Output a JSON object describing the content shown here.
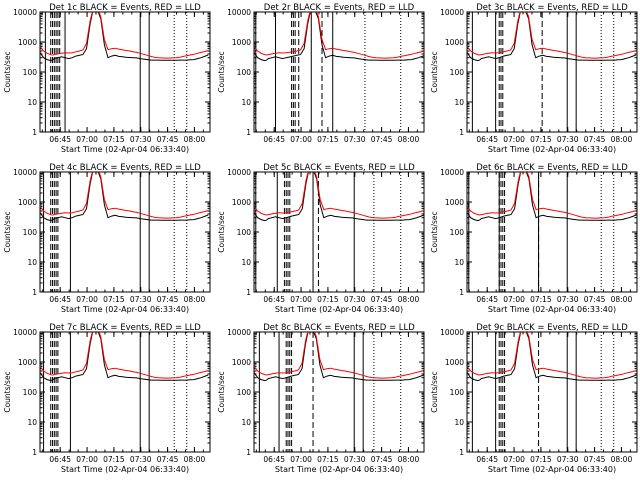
{
  "panels": [
    {
      "title": "Det 1c BLACK = Events, RED = LLD",
      "ylabel": "Counts/sec",
      "xlabel": "Start Time (02-Apr-04 06:33:40)"
    },
    {
      "title": "Det 2r BLACK = Events, RED = LLD",
      "ylabel": "Counts/sec",
      "xlabel": ""
    },
    {
      "title": "Det 3c BLACK = Events, RED = LLD",
      "ylabel": "Counts/sec",
      "xlabel": "Start Time (02-Apr-04 06:33:40)"
    },
    {
      "title": "Det 4c BLACK = Events, RED = LLD",
      "ylabel": "Counts/sec",
      "xlabel": "Start Time (02-Apr-04 06:33:40)"
    },
    {
      "title": "Det 5c BLACK = Events, RED = LLD",
      "ylabel": "Counts/sec",
      "xlabel": "Start Time (02-Apr-04 06:33:40)"
    },
    {
      "title": "Det 6c BLACK = Events, RED = LLD",
      "ylabel": "Counts/sec",
      "xlabel": "Start Time (02-Apr-04 06:33:40)"
    },
    {
      "title": "Det 7c BLACK = Events, RED = LLD",
      "ylabel": "Counts/sec",
      "xlabel": "Start Time (02-Apr-04 06:33:40)"
    },
    {
      "title": "Det 8c BLACK = Events, RED = LLD",
      "ylabel": "Counts/sec",
      "xlabel": "Start Time (02-Apr-04 06:33:40)"
    },
    {
      "title": "Det 9c BLACK = Events, RED = LLD",
      "ylabel": "Counts/sec",
      "xlabel": "Start Time (02-Apr-04 06:33:40)"
    }
  ],
  "chart_data": {
    "type": "line",
    "xticks": [
      "06:45",
      "07:00",
      "07:15",
      "07:30",
      "07:45",
      "08:00"
    ],
    "yticks": [
      "1",
      "10",
      "100",
      "1000",
      "10000"
    ],
    "ylim": [
      1,
      10000
    ],
    "yscale": "log",
    "xlim_minutes": [
      0,
      95
    ],
    "series": [
      {
        "name": "Events",
        "color": "#000000",
        "x": [
          0,
          2,
          4,
          6,
          7,
          8,
          10,
          12,
          14,
          16,
          18,
          20,
          22,
          24,
          26,
          28,
          30,
          32,
          34,
          36,
          38,
          40,
          42,
          44,
          46,
          48,
          50,
          52,
          54,
          56,
          58,
          60,
          62,
          64,
          66,
          68,
          70,
          72,
          74,
          76,
          78,
          80,
          82,
          84,
          86,
          88,
          90,
          92,
          94
        ],
        "y": [
          450,
          300,
          260,
          240,
          250,
          280,
          300,
          320,
          300,
          280,
          300,
          340,
          360,
          380,
          600,
          4000,
          15000,
          12000,
          6000,
          800,
          300,
          340,
          360,
          330,
          320,
          310,
          305,
          300,
          295,
          280,
          270,
          260,
          250,
          250,
          250,
          245,
          245,
          245,
          245,
          245,
          250,
          250,
          250,
          255,
          260,
          280,
          300,
          330,
          370
        ]
      },
      {
        "name": "LLD",
        "color": "#ff0000",
        "x": [
          0,
          2,
          4,
          6,
          7,
          8,
          10,
          12,
          14,
          16,
          18,
          20,
          22,
          24,
          26,
          28,
          30,
          32,
          34,
          36,
          38,
          40,
          42,
          44,
          46,
          48,
          50,
          52,
          54,
          56,
          58,
          60,
          62,
          64,
          66,
          68,
          70,
          72,
          74,
          76,
          78,
          80,
          82,
          84,
          86,
          88,
          90,
          92,
          94
        ],
        "y": [
          700,
          500,
          420,
          380,
          370,
          380,
          400,
          420,
          440,
          430,
          440,
          470,
          500,
          540,
          900,
          5000,
          16000,
          14000,
          7000,
          1200,
          560,
          600,
          620,
          580,
          550,
          520,
          500,
          470,
          450,
          420,
          390,
          360,
          330,
          310,
          300,
          295,
          290,
          290,
          295,
          300,
          310,
          330,
          350,
          370,
          390,
          420,
          450,
          480,
          520
        ]
      }
    ],
    "grid": false,
    "legend": "none"
  }
}
